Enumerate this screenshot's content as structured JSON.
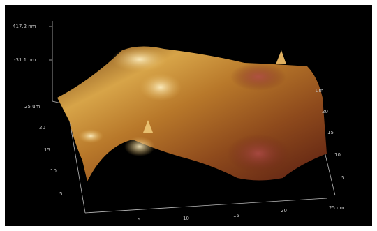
{
  "z_scale": {
    "max_label": "417.2 nm",
    "min_label": "-31.1 nm"
  },
  "left_axis": {
    "ticks": [
      "25 um",
      "20",
      "15",
      "10",
      "5"
    ]
  },
  "bottom_axis": {
    "ticks": [
      "5",
      "10",
      "15",
      "20",
      "25 um"
    ]
  },
  "right_axis": {
    "ticks": [
      "um",
      "20",
      "15",
      "10",
      "5"
    ]
  }
}
